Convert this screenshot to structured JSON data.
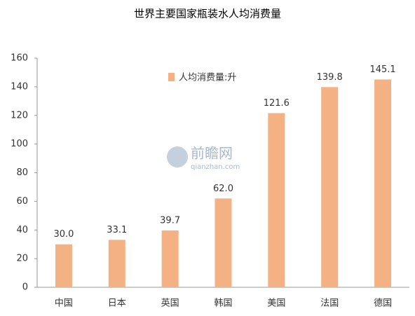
{
  "chart_data": {
    "type": "bar",
    "title": "世界主要国家瓶装水人均消费量",
    "categories": [
      "中国",
      "日本",
      "英国",
      "韩国",
      "美国",
      "法国",
      "德国"
    ],
    "series": [
      {
        "name": "人均消费量:升",
        "color": "#f4b183",
        "values": [
          30.0,
          33.1,
          39.7,
          62.0,
          121.6,
          139.8,
          145.1
        ],
        "value_labels": [
          "30.0",
          "33.1",
          "39.7",
          "62.0",
          "121.6",
          "139.8",
          "145.1"
        ]
      }
    ],
    "ylim": [
      0,
      160
    ],
    "yticks": [
      0,
      20,
      40,
      60,
      80,
      100,
      120,
      140,
      160
    ],
    "grid": false,
    "watermark": "前瞻网",
    "watermark_sub": "qianzhan.com"
  }
}
